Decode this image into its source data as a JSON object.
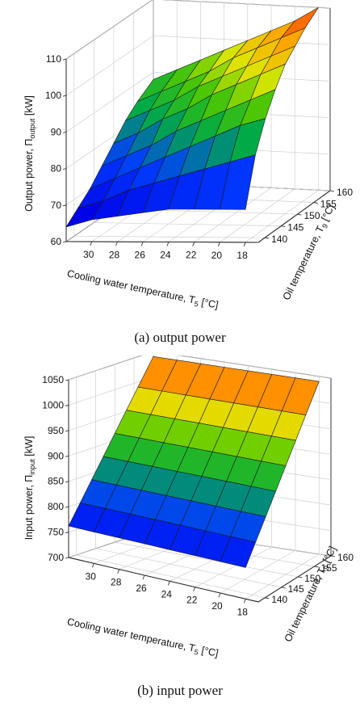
{
  "chart_data": [
    {
      "type": "surface3d",
      "caption": "(a)  output  power",
      "zlabel": "Output power, Π",
      "zlabel_sub": "output",
      "zlabel_unit": " [kW]",
      "xlabel": "Cooling water temperature, T",
      "xlabel_sub": "5",
      "xlabel_unit": " [°C]",
      "ylabel": "Oil temperature, T",
      "ylabel_sub": "9",
      "ylabel_unit": " [°C]",
      "x_ticks": [
        "30",
        "28",
        "26",
        "24",
        "22",
        "20",
        "18"
      ],
      "y_ticks": [
        "140",
        "145",
        "150",
        "155",
        "160"
      ],
      "z_ticks": [
        "60",
        "70",
        "80",
        "90",
        "100",
        "110"
      ],
      "xlim": [
        17,
        32
      ],
      "ylim": [
        138,
        160
      ],
      "zlim": [
        60,
        110
      ],
      "x": [
        32,
        30,
        28,
        26,
        24,
        22,
        20,
        18
      ],
      "y": [
        138,
        141,
        144,
        147,
        150,
        153,
        156,
        160
      ],
      "z": [
        [
          64,
          66,
          67,
          68,
          69,
          69,
          69,
          69
        ],
        [
          67,
          69,
          72,
          74,
          76,
          78,
          80,
          82
        ],
        [
          70,
          73,
          76,
          79,
          82,
          85,
          88,
          90
        ],
        [
          74,
          77,
          80,
          84,
          87,
          90,
          93,
          96
        ],
        [
          78,
          81,
          85,
          88,
          92,
          95,
          98,
          101
        ],
        [
          82,
          85,
          88,
          92,
          95,
          98,
          101,
          104
        ],
        [
          85,
          88,
          91,
          94,
          98,
          101,
          104,
          107
        ],
        [
          88,
          91,
          94,
          97,
          100,
          103,
          106,
          110
        ]
      ]
    },
    {
      "type": "surface3d",
      "caption": "(b)  input  power",
      "zlabel": "Input power, Π",
      "zlabel_sub": "input",
      "zlabel_unit": " [kW]",
      "xlabel": "Cooling water temperature, T",
      "xlabel_sub": "5",
      "xlabel_unit": " [°C]",
      "ylabel": "Oil temperature, T",
      "ylabel_sub": "9",
      "ylabel_unit": " [°C]",
      "x_ticks": [
        "30",
        "28",
        "26",
        "24",
        "22",
        "20",
        "18"
      ],
      "y_ticks": [
        "140",
        "145",
        "150",
        "155",
        "160"
      ],
      "z_ticks": [
        "700",
        "750",
        "800",
        "850",
        "900",
        "950",
        "1000",
        "1050"
      ],
      "xlim": [
        17,
        32
      ],
      "ylim": [
        138,
        160
      ],
      "zlim": [
        700,
        1050
      ],
      "x": [
        32,
        30,
        28,
        26,
        24,
        22,
        20,
        18
      ],
      "y": [
        138,
        141,
        144,
        147,
        150,
        153,
        156,
        160
      ],
      "z": [
        [
          762,
          762,
          762,
          762,
          762,
          762,
          762,
          762
        ],
        [
          800,
          800,
          800,
          800,
          800,
          800,
          800,
          800
        ],
        [
          838,
          838,
          838,
          838,
          838,
          838,
          838,
          838
        ],
        [
          876,
          876,
          876,
          876,
          876,
          876,
          876,
          876
        ],
        [
          914,
          914,
          914,
          914,
          914,
          914,
          914,
          914
        ],
        [
          952,
          952,
          952,
          952,
          952,
          952,
          952,
          952
        ],
        [
          990,
          990,
          990,
          990,
          990,
          990,
          990,
          990
        ],
        [
          1040,
          1040,
          1040,
          1040,
          1040,
          1040,
          1040,
          1040
        ]
      ]
    }
  ]
}
